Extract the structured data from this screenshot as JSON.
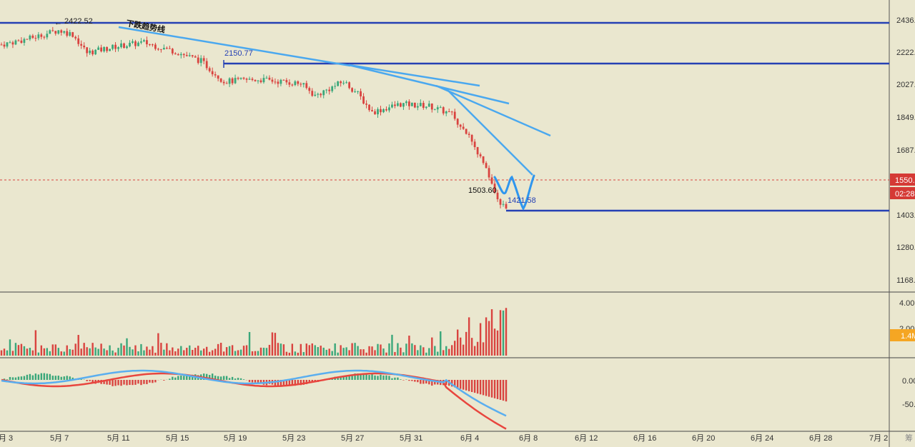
{
  "chart_data": {
    "type": "candlestick",
    "price_axis": {
      "ticks": [
        "2436.",
        "2222.",
        "2027.",
        "1849.",
        "1687.",
        "1403.",
        "1280.",
        "1168."
      ],
      "tick_values": [
        2436,
        2222,
        2027,
        1849,
        1687,
        1403,
        1280,
        1168
      ]
    },
    "date_axis": {
      "ticks": [
        "月 3",
        "5月 7",
        "5月 11",
        "5月 15",
        "5月 19",
        "5月 23",
        "5月 27",
        "5月 31",
        "6月 4",
        "6月 8",
        "6月 12",
        "6月 16",
        "6月 20",
        "6月 24",
        "6月 28",
        "7月 2"
      ],
      "extra_label": "筹"
    },
    "current_price": {
      "label": "1550.",
      "countdown": "02:28",
      "value": 1550
    },
    "annotations": {
      "trend_label": "下跌趋势线",
      "high_label": "2422.52",
      "level1_label": "2150.77",
      "low1_label": "1503.60",
      "low2_label": "1421.58"
    },
    "horizontal_levels": [
      2436,
      2170,
      1410
    ],
    "volume_axis": {
      "ticks": [
        "4.00",
        "2.00"
      ],
      "current_badge": "1.4M"
    },
    "macd_axis": {
      "ticks": [
        "0.00",
        "-50.0"
      ]
    },
    "colors": {
      "background": "#eae7cf",
      "up": "#3aa77a",
      "down": "#d9433f",
      "trend_line": "#4aa8ef",
      "level_line": "#2540b4",
      "macd_fast": "#e8463e",
      "macd_slow": "#5aaeef",
      "current_badge": "#d53a35",
      "volume_badge": "#f5a623"
    }
  }
}
